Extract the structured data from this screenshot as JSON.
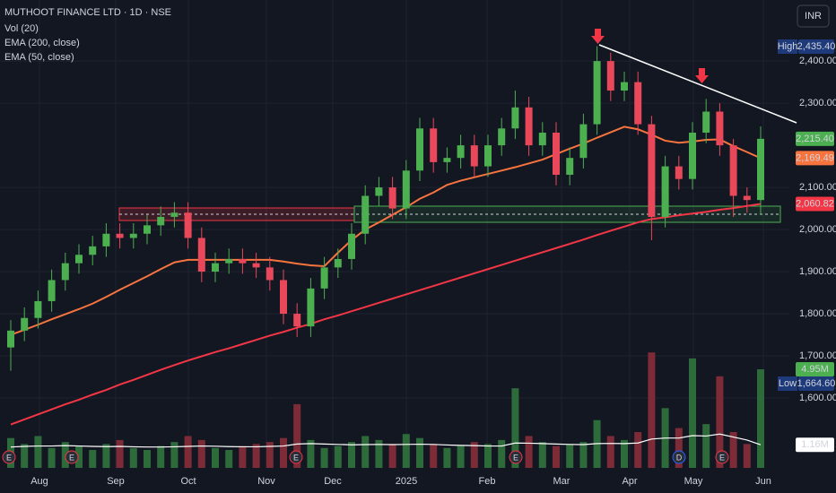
{
  "header": {
    "title": "MUTHOOT FINANCE LTD · 1D · NSE",
    "currency": "INR"
  },
  "chart_data": {
    "type": "candlestick",
    "x_labels": [
      "Aug",
      "Sep",
      "Oct",
      "Nov",
      "Dec",
      "2025",
      "Feb",
      "Mar",
      "Apr",
      "May",
      "Jun"
    ],
    "ylim": [
      1434,
      2545
    ],
    "yticks": [
      {
        "value": 2400,
        "label": "2,400.00"
      },
      {
        "value": 2300,
        "label": "2,300.00"
      },
      {
        "value": 2100,
        "label": "2,100.00"
      },
      {
        "value": 2000,
        "label": "2,000.00"
      },
      {
        "value": 1900,
        "label": "1,900.00"
      },
      {
        "value": 1800,
        "label": "1,800.00"
      },
      {
        "value": 1700,
        "label": "1,700.00"
      },
      {
        "value": 1600,
        "label": "1,600.00"
      }
    ],
    "grid": true,
    "up_color": "#4caf50",
    "down_color": "#e8485a",
    "ohlc": {
      "open": [
        1720,
        1760,
        1790,
        1830,
        1880,
        1920,
        1940,
        1960,
        1990,
        1980,
        1990,
        2010,
        2030,
        2040,
        1980,
        1900,
        1920,
        1930,
        1920,
        1910,
        1880,
        1800,
        1770,
        1860,
        1910,
        1930,
        1990,
        2080,
        2100,
        2050,
        2140,
        2240,
        2160,
        2170,
        2200,
        2150,
        2200,
        2240,
        2290,
        2200,
        2230,
        2130,
        2170,
        2250,
        2400,
        2330,
        2350,
        2250,
        2030,
        2150,
        2120,
        2230,
        2280,
        2200,
        2080,
        2070
      ],
      "high": [
        1785,
        1815,
        1855,
        1905,
        1945,
        1965,
        1985,
        2015,
        2015,
        2015,
        2035,
        2055,
        2065,
        2065,
        2005,
        1945,
        1955,
        1955,
        1945,
        1935,
        1905,
        1825,
        1885,
        1935,
        1955,
        2015,
        2105,
        2125,
        2125,
        2165,
        2265,
        2265,
        2195,
        2225,
        2225,
        2225,
        2265,
        2330,
        2315,
        2255,
        2255,
        2195,
        2275,
        2435.4,
        2420,
        2375,
        2375,
        2270,
        2175,
        2175,
        2255,
        2310,
        2300,
        2215,
        2100,
        2245
      ],
      "low": [
        1664.6,
        1735,
        1765,
        1805,
        1855,
        1895,
        1915,
        1935,
        1955,
        1955,
        1965,
        1985,
        2005,
        1955,
        1875,
        1875,
        1895,
        1895,
        1885,
        1855,
        1775,
        1745,
        1745,
        1835,
        1885,
        1905,
        1965,
        2055,
        2025,
        2025,
        2115,
        2135,
        2135,
        2145,
        2125,
        2125,
        2175,
        2215,
        2175,
        2175,
        2105,
        2105,
        2145,
        2225,
        2305,
        2305,
        2225,
        1975,
        2005,
        2095,
        2095,
        2205,
        2175,
        2030,
        2040,
        2035
      ],
      "close": [
        1760,
        1790,
        1830,
        1880,
        1920,
        1940,
        1960,
        1990,
        1980,
        1990,
        2010,
        2030,
        2040,
        1980,
        1900,
        1920,
        1930,
        1920,
        1910,
        1880,
        1800,
        1770,
        1860,
        1910,
        1930,
        1990,
        2080,
        2100,
        2050,
        2140,
        2240,
        2160,
        2170,
        2200,
        2150,
        2200,
        2240,
        2290,
        2200,
        2230,
        2130,
        2170,
        2250,
        2400,
        2330,
        2350,
        2250,
        2030,
        2150,
        2120,
        2230,
        2280,
        2200,
        2080,
        2070,
        2215.4
      ]
    },
    "series": [
      {
        "name": "EMA (200, close)",
        "color": "#f23645",
        "values": [
          1537,
          1549,
          1561,
          1573,
          1585,
          1596,
          1608,
          1619,
          1632,
          1643,
          1655,
          1667,
          1678,
          1689,
          1699,
          1709,
          1718,
          1728,
          1738,
          1748,
          1757,
          1767,
          1776,
          1787,
          1796,
          1806,
          1816,
          1826,
          1836,
          1846,
          1856,
          1866,
          1876,
          1886,
          1896,
          1906,
          1916,
          1926,
          1936,
          1946,
          1956,
          1966,
          1976,
          1987,
          1997,
          2007,
          2017,
          2025,
          2029,
          2034,
          2038,
          2042,
          2047,
          2051,
          2056,
          2060.82
        ],
        "last_label": {
          "value": 2060.82,
          "label": "2,060.82"
        }
      },
      {
        "name": "EMA (50, close)",
        "color": "#f7743f",
        "values": [
          1750,
          1762,
          1774,
          1787,
          1799,
          1811,
          1824,
          1840,
          1857,
          1873,
          1889,
          1906,
          1922,
          1928,
          1928,
          1928,
          1928,
          1928,
          1928,
          1928,
          1924,
          1919,
          1915,
          1913,
          1945,
          1975,
          2000,
          2017,
          2035,
          2053,
          2073,
          2088,
          2106,
          2116,
          2124,
          2132,
          2140,
          2148,
          2157,
          2166,
          2179,
          2192,
          2204,
          2218,
          2231,
          2244,
          2238,
          2225,
          2211,
          2206,
          2209,
          2213,
          2214,
          2198,
          2184,
          2169.49
        ],
        "last_label": {
          "value": 2169.49,
          "label": "2,169.49"
        }
      }
    ],
    "volume": {
      "name": "Vol (20)",
      "vlim": [
        0,
        23.5
      ],
      "values": [
        1.5,
        1.2,
        1.6,
        1.0,
        1.3,
        1.1,
        0.9,
        1.2,
        1.4,
        1.0,
        0.9,
        1.1,
        1.3,
        1.6,
        1.4,
        1.0,
        0.9,
        1.1,
        1.2,
        1.3,
        1.5,
        3.2,
        1.4,
        1.0,
        1.1,
        1.3,
        1.6,
        1.4,
        1.2,
        1.7,
        1.5,
        1.2,
        1.0,
        1.1,
        1.3,
        1.2,
        1.4,
        4.0,
        1.6,
        1.3,
        1.1,
        1.2,
        1.3,
        2.4,
        1.6,
        1.4,
        1.8,
        5.8,
        3.0,
        2.0,
        5.5,
        2.2,
        4.6,
        1.8,
        1.2,
        4.95
      ],
      "last_label": {
        "value": 4.95,
        "label": "4.95M"
      },
      "ma": [
        1.05,
        1.08,
        1.1,
        1.1,
        1.12,
        1.1,
        1.08,
        1.07,
        1.08,
        1.06,
        1.05,
        1.05,
        1.06,
        1.08,
        1.1,
        1.09,
        1.07,
        1.06,
        1.06,
        1.08,
        1.1,
        1.2,
        1.22,
        1.2,
        1.18,
        1.16,
        1.17,
        1.18,
        1.17,
        1.18,
        1.19,
        1.18,
        1.15,
        1.13,
        1.12,
        1.1,
        1.1,
        1.25,
        1.24,
        1.22,
        1.2,
        1.18,
        1.17,
        1.22,
        1.23,
        1.22,
        1.25,
        1.45,
        1.5,
        1.5,
        1.62,
        1.6,
        1.7,
        1.55,
        1.4,
        1.16
      ],
      "ma_label": {
        "value": 1.16,
        "label": "1.16M"
      }
    },
    "last_price": {
      "value": 2215.4,
      "label": "2,215.40"
    },
    "high": {
      "name": "High",
      "value": 2435.4,
      "label": "2,435.40"
    },
    "low": {
      "name": "Low",
      "value": 1664.6,
      "label": "1,664.60"
    },
    "events": [
      "E",
      "E",
      "E",
      "E",
      "D",
      "E"
    ]
  }
}
